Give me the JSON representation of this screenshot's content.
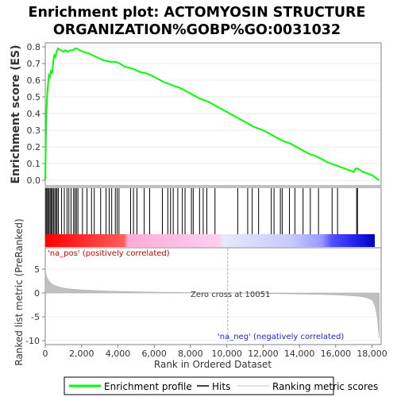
{
  "title": {
    "line1": "Enrichment plot: ACTOMYOSIN STRUCTURE",
    "line2": "ORGANIZATION%GOBP%GO:0031032"
  },
  "colors": {
    "enrichment_line": "#00ff00",
    "hits": "#000000",
    "metric_fill": "#c0c0c0",
    "pos_band": "#ff0000",
    "neg_band": "#0000ff"
  },
  "chart_data": [
    {
      "type": "line",
      "name": "enrichment-profile-panel",
      "ylabel": "Enrichment score (ES)",
      "xlim": [
        0,
        18500
      ],
      "ylim": [
        0,
        0.8
      ],
      "yticks": [
        "0.0",
        "0.1",
        "0.2",
        "0.3",
        "0.4",
        "0.5",
        "0.6",
        "0.7",
        "0.8"
      ],
      "grid": true,
      "series": [
        {
          "name": "Enrichment profile",
          "x": [
            0,
            50,
            100,
            150,
            200,
            260,
            320,
            380,
            440,
            500,
            560,
            620,
            700,
            850,
            1000,
            1100,
            1250,
            1400,
            1550,
            1650,
            1750,
            1900,
            2100,
            2400,
            2800,
            3200,
            3600,
            3900,
            4100,
            4400,
            4800,
            5200,
            5600,
            6000,
            6500,
            7000,
            7500,
            8000,
            8500,
            9000,
            9500,
            10000,
            10500,
            11000,
            11500,
            12000,
            12500,
            13000,
            13500,
            14000,
            14500,
            15000,
            15500,
            16000,
            16500,
            17000,
            17100,
            17200,
            17500,
            18000,
            18400
          ],
          "y": [
            0.0,
            0.35,
            0.5,
            0.57,
            0.63,
            0.62,
            0.66,
            0.64,
            0.71,
            0.75,
            0.74,
            0.77,
            0.79,
            0.78,
            0.77,
            0.78,
            0.77,
            0.78,
            0.78,
            0.79,
            0.79,
            0.78,
            0.77,
            0.76,
            0.74,
            0.72,
            0.71,
            0.71,
            0.7,
            0.68,
            0.67,
            0.65,
            0.64,
            0.62,
            0.59,
            0.57,
            0.55,
            0.52,
            0.49,
            0.47,
            0.44,
            0.41,
            0.38,
            0.35,
            0.32,
            0.3,
            0.27,
            0.24,
            0.22,
            0.19,
            0.16,
            0.14,
            0.11,
            0.09,
            0.07,
            0.05,
            0.07,
            0.07,
            0.05,
            0.03,
            0.0
          ]
        }
      ]
    },
    {
      "type": "bar",
      "name": "hits-panel",
      "series": [
        {
          "name": "Hits",
          "x": [
            40,
            90,
            150,
            210,
            270,
            330,
            390,
            450,
            520,
            590,
            650,
            720,
            900,
            1050,
            1200,
            1300,
            1420,
            1560,
            1640,
            1720,
            1800,
            2050,
            2300,
            2550,
            2700,
            3050,
            3350,
            3520,
            3660,
            3860,
            3960,
            4060,
            4700,
            4860,
            5050,
            5450,
            5750,
            6450,
            6750,
            6900,
            7050,
            7300,
            7550,
            7700,
            8050,
            8150,
            8500,
            8700,
            8900,
            9350,
            10600,
            11150,
            11400,
            11750,
            12450,
            12600,
            12950,
            13050,
            13450,
            13750,
            14200,
            14600,
            15050,
            15800,
            16100,
            17150,
            17200
          ]
        }
      ]
    },
    {
      "type": "area",
      "name": "ranked-metric-panel",
      "ylabel": "Ranked list metric (PreRanked)",
      "xlabel": "Rank in Ordered Dataset",
      "xlim": [
        0,
        18500
      ],
      "ylim": [
        -10,
        10
      ],
      "yticks": [
        "5",
        "0",
        "-5",
        "-10"
      ],
      "xticks": [
        "0",
        "2,000",
        "4,000",
        "6,000",
        "8,000",
        "10,000",
        "12,000",
        "14,000",
        "16,000",
        "18,000"
      ],
      "series": [
        {
          "name": "Ranking metric scores",
          "x": [
            0,
            20,
            50,
            100,
            200,
            300,
            500,
            800,
            1200,
            1800,
            2500,
            3500,
            5000,
            7000,
            9000,
            10051,
            11000,
            13000,
            15000,
            16000,
            17000,
            17500,
            17800,
            18000,
            18100,
            18200,
            18300,
            18400
          ],
          "y": [
            5.5,
            4.6,
            3.8,
            3.2,
            2.6,
            2.1,
            1.6,
            1.2,
            0.9,
            0.7,
            0.55,
            0.4,
            0.25,
            0.12,
            0.03,
            0.0,
            -0.05,
            -0.15,
            -0.3,
            -0.4,
            -0.6,
            -0.8,
            -1.1,
            -1.5,
            -2.2,
            -3.2,
            -5.5,
            -9.5
          ]
        }
      ]
    }
  ],
  "annotations": {
    "zero_cross": "Zero cross at 10051",
    "pos": "'na_pos' (positively correlated)",
    "neg": "'na_neg' (negatively correlated)"
  },
  "legend": {
    "items": [
      {
        "label": "Enrichment profile",
        "color": "#00ff00"
      },
      {
        "label": "Hits",
        "color": "#000000"
      },
      {
        "label": "Ranking metric scores",
        "color": "#c0c0c0"
      }
    ]
  }
}
